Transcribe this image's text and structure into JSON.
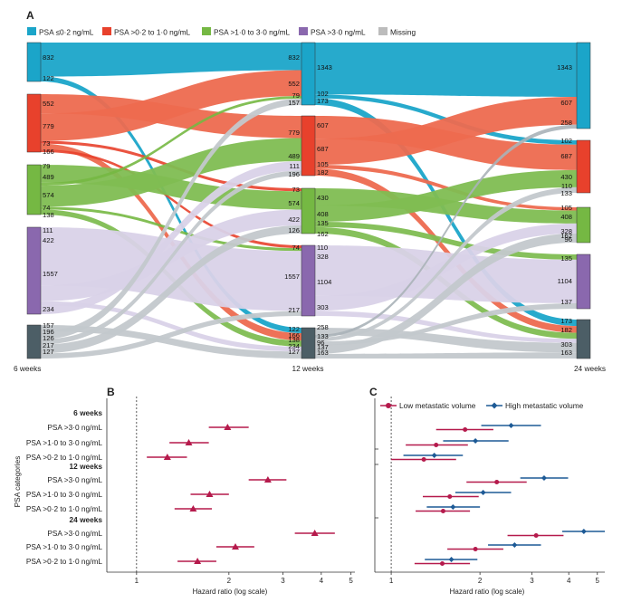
{
  "panel_a": {
    "letter": "A",
    "legend": [
      {
        "label": "PSA ≤0·2 ng/mL",
        "color": "#1ba5c9"
      },
      {
        "label": "PSA >0·2 to 1·0 ng/mL",
        "color": "#e8412c"
      },
      {
        "label": "PSA >1·0 to 3·0 ng/mL",
        "color": "#75b843"
      },
      {
        "label": "PSA >3·0 ng/mL",
        "color": "#8a68ae"
      },
      {
        "label": "Missing",
        "color": "#bcbcbc"
      }
    ],
    "timepoint_labels": [
      "6 weeks",
      "12 weeks",
      "24 weeks"
    ],
    "node_colors": [
      "#1ba5c9",
      "#e8412c",
      "#75b843",
      "#8a68ae",
      "#4c5e66"
    ],
    "flow_colors": [
      "#1ba5c9",
      "#ed6a4f",
      "#7fbd52",
      "#d9d2e8",
      "#c3c8cc"
    ],
    "thin_flow_colors": [
      "#1ba5c9",
      "#e8412c",
      "#75b843",
      "#b9a9d4",
      "#aab2b8"
    ],
    "transitions": [
      {
        "from": "6 weeks",
        "to": "12 weeks",
        "flows": [
          [
            0,
            0,
            832
          ],
          [
            0,
            4,
            122
          ],
          [
            1,
            1,
            552
          ],
          [
            1,
            0,
            779
          ],
          [
            1,
            2,
            79
          ],
          [
            1,
            4,
            166
          ],
          [
            1,
            3,
            73
          ],
          [
            2,
            2,
            489
          ],
          [
            2,
            0,
            79
          ],
          [
            2,
            1,
            574
          ],
          [
            2,
            3,
            74
          ],
          [
            2,
            4,
            138
          ],
          [
            3,
            3,
            1557
          ],
          [
            3,
            2,
            422
          ],
          [
            3,
            4,
            111
          ],
          [
            3,
            1,
            234
          ],
          [
            4,
            4,
            157
          ],
          [
            4,
            0,
            196
          ],
          [
            4,
            1,
            126
          ],
          [
            4,
            2,
            217
          ],
          [
            4,
            3,
            127
          ]
        ]
      },
      {
        "from": "12 weeks",
        "to": "24 weeks",
        "flows": [
          [
            0,
            0,
            1343
          ],
          [
            0,
            1,
            102
          ],
          [
            0,
            4,
            173
          ],
          [
            1,
            1,
            607
          ],
          [
            1,
            0,
            687
          ],
          [
            1,
            2,
            105
          ],
          [
            1,
            4,
            182
          ],
          [
            2,
            2,
            430
          ],
          [
            2,
            1,
            408
          ],
          [
            2,
            3,
            135
          ],
          [
            2,
            4,
            162
          ],
          [
            3,
            3,
            1104
          ],
          [
            3,
            2,
            328
          ],
          [
            3,
            4,
            110
          ],
          [
            4,
            4,
            258
          ],
          [
            4,
            0,
            96
          ],
          [
            4,
            1,
            133
          ],
          [
            4,
            3,
            137
          ],
          [
            4,
            2,
            303
          ],
          [
            4,
            4,
            163
          ]
        ]
      }
    ],
    "labels": {
      "col1": [
        "832",
        "122",
        "552",
        "779",
        "73",
        "166",
        "79",
        "489",
        "574",
        "74",
        "138",
        "111",
        "422",
        "1557",
        "234",
        "157",
        "196",
        "126",
        "217",
        "127"
      ],
      "col2_left": [
        "832",
        "552",
        "79",
        "157",
        "779",
        "489",
        "111",
        "196",
        "73",
        "574",
        "422",
        "126",
        "74",
        "1557",
        "217",
        "122",
        "166",
        "138",
        "234",
        "127"
      ],
      "col2_right": [
        "1343",
        "102",
        "173",
        "607",
        "687",
        "105",
        "182",
        "430",
        "408",
        "135",
        "162",
        "110",
        "328",
        "1104",
        "303",
        "258",
        "133",
        "96",
        "137",
        "163"
      ],
      "col3": [
        "1343",
        "607",
        "258",
        "102",
        "687",
        "430",
        "110",
        "133",
        "105",
        "408",
        "162",
        "328",
        "96",
        "135",
        "1104",
        "137",
        "173",
        "182",
        "303",
        "163"
      ]
    }
  },
  "panel_b": {
    "letter": "B",
    "ylabel": "PSA categories",
    "xlabel": "Hazard ratio (log scale)",
    "ticks": [
      1,
      2,
      3,
      4,
      5
    ],
    "groups": [
      {
        "header": "6 weeks",
        "rows": [
          {
            "label": "PSA >3·0 ng/mL",
            "hr": 1.98,
            "lo": 1.72,
            "hi": 2.32
          },
          {
            "label": "PSA >1·0 to 3·0 ng/mL",
            "hr": 1.48,
            "lo": 1.28,
            "hi": 1.72
          },
          {
            "label": "PSA >0·2 to 1·0 ng/mL",
            "hr": 1.26,
            "lo": 1.08,
            "hi": 1.46
          }
        ]
      },
      {
        "header": "12 weeks",
        "rows": [
          {
            "label": "PSA >3·0 ng/mL",
            "hr": 2.68,
            "lo": 2.32,
            "hi": 3.08
          },
          {
            "label": "PSA >1·0 to 3·0 ng/mL",
            "hr": 1.73,
            "lo": 1.5,
            "hi": 2.0
          },
          {
            "label": "PSA >0·2 to 1·0 ng/mL",
            "hr": 1.53,
            "lo": 1.33,
            "hi": 1.76
          }
        ]
      },
      {
        "header": "24 weeks",
        "rows": [
          {
            "label": "PSA >3·0 ng/mL",
            "hr": 3.81,
            "lo": 3.28,
            "hi": 4.43
          },
          {
            "label": "PSA >1·0 to 3·0 ng/mL",
            "hr": 2.1,
            "lo": 1.82,
            "hi": 2.42
          },
          {
            "label": "PSA >0·2 to 1·0 ng/mL",
            "hr": 1.58,
            "lo": 1.36,
            "hi": 1.82
          }
        ]
      }
    ]
  },
  "panel_c": {
    "letter": "C",
    "xlabel": "Hazard ratio (log scale)",
    "ticks": [
      1,
      2,
      3,
      4,
      5
    ],
    "legend": [
      {
        "label": "Low metastatic volume",
        "color": "#b51a4c"
      },
      {
        "label": "High metastatic volume",
        "color": "#1d5a96"
      }
    ],
    "groups": [
      {
        "rows": [
          {
            "low": [
              1.78,
              1.42,
              2.22
            ],
            "high": [
              2.55,
              2.02,
              3.22
            ]
          },
          {
            "low": [
              1.42,
              1.12,
              1.82
            ],
            "high": [
              1.93,
              1.5,
              2.5
            ]
          },
          {
            "low": [
              1.29,
              1.0,
              1.66
            ],
            "high": [
              1.4,
              1.1,
              1.75
            ]
          }
        ]
      },
      {
        "rows": [
          {
            "low": [
              2.28,
              1.8,
              2.88
            ],
            "high": [
              3.3,
              2.74,
              3.98
            ]
          },
          {
            "low": [
              1.58,
              1.28,
              1.98
            ],
            "high": [
              2.05,
              1.65,
              2.55
            ]
          },
          {
            "low": [
              1.5,
              1.21,
              1.85
            ],
            "high": [
              1.62,
              1.32,
              2.0
            ]
          }
        ]
      },
      {
        "rows": [
          {
            "low": [
              3.1,
              2.48,
              3.84
            ],
            "high": [
              4.5,
              3.8,
              5.3
            ]
          },
          {
            "low": [
              1.93,
              1.55,
              2.4
            ],
            "high": [
              2.62,
              2.13,
              3.22
            ]
          },
          {
            "low": [
              1.49,
              1.2,
              1.85
            ],
            "high": [
              1.6,
              1.3,
              1.96
            ]
          }
        ]
      }
    ]
  }
}
